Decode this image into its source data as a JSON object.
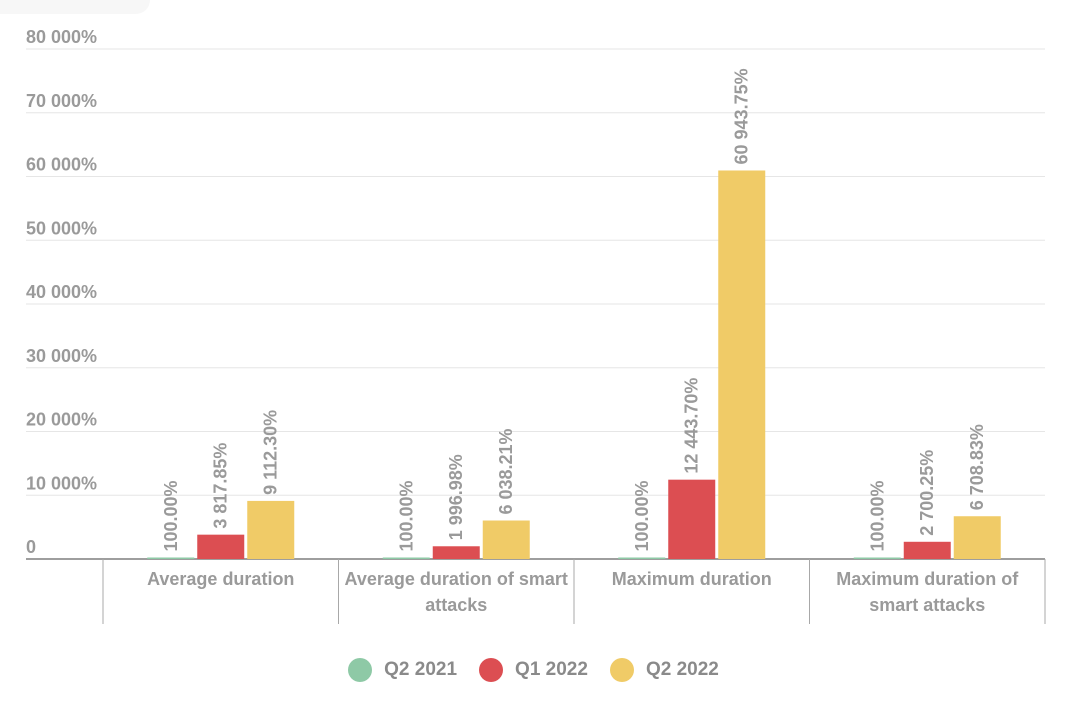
{
  "chart_data": {
    "type": "bar",
    "title": "",
    "xlabel": "",
    "ylabel": "",
    "ylim": [
      0,
      80000
    ],
    "y_ticks": [
      "0",
      "10 000%",
      "20 000%",
      "30 000%",
      "40 000%",
      "50 000%",
      "60 000%",
      "70 000%",
      "80 000%"
    ],
    "y_tick_values": [
      0,
      10000,
      20000,
      30000,
      40000,
      50000,
      60000,
      70000,
      80000
    ],
    "categories": [
      [
        "Average duration"
      ],
      [
        "Average duration of smart",
        "attacks"
      ],
      [
        "Maximum duration"
      ],
      [
        "Maximum duration of",
        "smart attacks"
      ]
    ],
    "series": [
      {
        "name": "Q2 2021",
        "color": "#8ec9a6",
        "values": [
          100.0,
          100.0,
          100.0,
          100.0
        ],
        "labels": [
          "100.00%",
          "100.00%",
          "100.00%",
          "100.00%"
        ]
      },
      {
        "name": "Q1 2022",
        "color": "#dc4e52",
        "values": [
          3817.85,
          1996.98,
          12443.7,
          2700.25
        ],
        "labels": [
          "3 817.85%",
          "1 996.98%",
          "12 443.70%",
          "2 700.25%"
        ]
      },
      {
        "name": "Q2 2022",
        "color": "#f0cb67",
        "values": [
          9112.3,
          6038.21,
          60943.75,
          6708.83
        ],
        "labels": [
          "9 112.30%",
          "6 038.21%",
          "60 943.75%",
          "6 708.83%"
        ]
      }
    ],
    "grid": true,
    "legend": "bottom-center"
  }
}
